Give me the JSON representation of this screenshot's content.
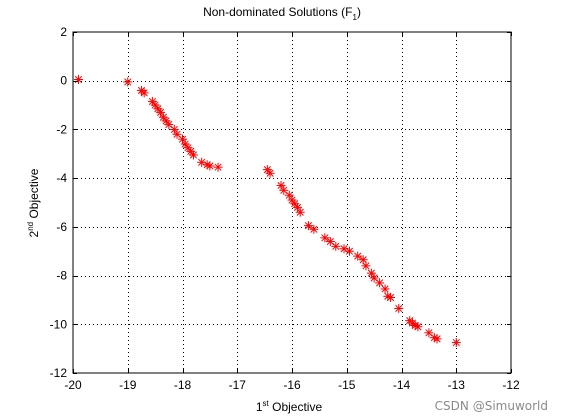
{
  "chart_data": {
    "type": "scatter",
    "title": {
      "text": "Non-dominated Solutions (F",
      "subscript": "1",
      "suffix": ")"
    },
    "xlabel": {
      "pre": "1",
      "sup": "st",
      "post": " Objective"
    },
    "ylabel": {
      "pre": "2",
      "sup": "nd",
      "post": " Objective"
    },
    "xlim": [
      -20,
      -12
    ],
    "ylim": [
      -12,
      2
    ],
    "xticks": [
      -20,
      -19,
      -18,
      -17,
      -16,
      -15,
      -14,
      -13,
      -12
    ],
    "yticks": [
      -12,
      -10,
      -8,
      -6,
      -4,
      -2,
      0,
      2
    ],
    "grid": "dotted",
    "marker": "asterisk",
    "marker_color": "#ff0000",
    "series": [
      {
        "points": [
          [
            -19.9,
            0.05
          ],
          [
            -19.0,
            -0.05
          ],
          [
            -18.75,
            -0.4
          ],
          [
            -18.7,
            -0.5
          ],
          [
            -18.55,
            -0.85
          ],
          [
            -18.5,
            -1.0
          ],
          [
            -18.45,
            -1.15
          ],
          [
            -18.4,
            -1.3
          ],
          [
            -18.35,
            -1.5
          ],
          [
            -18.3,
            -1.65
          ],
          [
            -18.25,
            -1.8
          ],
          [
            -18.15,
            -2.0
          ],
          [
            -18.1,
            -2.2
          ],
          [
            -18.0,
            -2.4
          ],
          [
            -17.95,
            -2.6
          ],
          [
            -17.9,
            -2.75
          ],
          [
            -17.85,
            -2.9
          ],
          [
            -17.8,
            -3.05
          ],
          [
            -17.65,
            -3.35
          ],
          [
            -17.55,
            -3.45
          ],
          [
            -17.5,
            -3.5
          ],
          [
            -17.35,
            -3.55
          ],
          [
            -16.45,
            -3.65
          ],
          [
            -16.4,
            -3.8
          ],
          [
            -16.2,
            -4.3
          ],
          [
            -16.15,
            -4.5
          ],
          [
            -16.05,
            -4.7
          ],
          [
            -16.0,
            -4.9
          ],
          [
            -15.95,
            -5.05
          ],
          [
            -15.9,
            -5.2
          ],
          [
            -15.85,
            -5.4
          ],
          [
            -15.7,
            -5.95
          ],
          [
            -15.6,
            -6.1
          ],
          [
            -15.4,
            -6.45
          ],
          [
            -15.3,
            -6.6
          ],
          [
            -15.2,
            -6.8
          ],
          [
            -15.05,
            -6.9
          ],
          [
            -14.95,
            -7.0
          ],
          [
            -14.8,
            -7.2
          ],
          [
            -14.7,
            -7.35
          ],
          [
            -14.65,
            -7.6
          ],
          [
            -14.55,
            -7.9
          ],
          [
            -14.5,
            -8.1
          ],
          [
            -14.4,
            -8.3
          ],
          [
            -14.3,
            -8.55
          ],
          [
            -14.25,
            -8.85
          ],
          [
            -14.2,
            -8.9
          ],
          [
            -14.05,
            -9.35
          ],
          [
            -13.85,
            -9.85
          ],
          [
            -13.8,
            -9.95
          ],
          [
            -13.75,
            -10.05
          ],
          [
            -13.7,
            -10.1
          ],
          [
            -13.5,
            -10.35
          ],
          [
            -13.4,
            -10.55
          ],
          [
            -13.35,
            -10.6
          ],
          [
            -13.0,
            -10.75
          ]
        ]
      }
    ]
  },
  "watermark": "CSDN @Simuworld"
}
